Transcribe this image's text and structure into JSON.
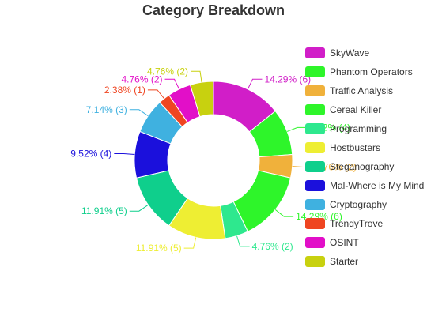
{
  "chart_data": {
    "type": "pie",
    "style": "donut",
    "title": "Category Breakdown",
    "legend_position": "right",
    "slices": [
      {
        "name": "SkyWave",
        "value": 6,
        "label": "14.29% (6)",
        "color": "#d11ec8"
      },
      {
        "name": "Phantom Operators",
        "value": 4,
        "label": "9.52% (4)",
        "color": "#2ef52a"
      },
      {
        "name": "Traffic Analysis",
        "value": 2,
        "label": "4.76% (2)",
        "color": "#f0b13b"
      },
      {
        "name": "Cereal Killer",
        "value": 6,
        "label": "14.29% (6)",
        "color": "#2ef52a"
      },
      {
        "name": "Programming",
        "value": 2,
        "label": "4.76% (2)",
        "color": "#2ee88e"
      },
      {
        "name": "Hostbusters",
        "value": 5,
        "label": "11.91% (5)",
        "color": "#eeee33"
      },
      {
        "name": "Steganography",
        "value": 5,
        "label": "11.91% (5)",
        "color": "#0fcf8c"
      },
      {
        "name": "Mal-Where is My Mind",
        "value": 4,
        "label": "9.52% (4)",
        "color": "#1b10dc"
      },
      {
        "name": "Cryptography",
        "value": 3,
        "label": "7.14% (3)",
        "color": "#3fb1e0"
      },
      {
        "name": "TrendyTrove",
        "value": 1,
        "label": "2.38% (1)",
        "color": "#ef4521"
      },
      {
        "name": "OSINT",
        "value": 2,
        "label": "4.76% (2)",
        "color": "#e20fc8"
      },
      {
        "name": "Starter",
        "value": 2,
        "label": "4.76% (2)",
        "color": "#c8d10f"
      }
    ]
  }
}
